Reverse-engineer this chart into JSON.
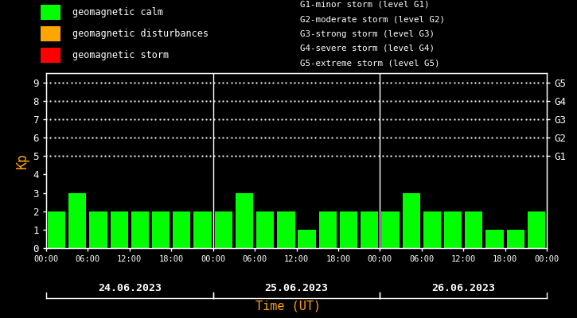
{
  "background_color": "#000000",
  "bar_color_calm": "#00FF00",
  "bar_color_disturbance": "#FFA500",
  "bar_color_storm": "#FF0000",
  "kp_values": [
    2,
    3,
    2,
    2,
    2,
    2,
    2,
    2,
    2,
    3,
    2,
    2,
    1,
    2,
    2,
    2,
    2,
    3,
    2,
    2,
    2,
    1,
    1,
    2
  ],
  "dates": [
    "24.06.2023",
    "25.06.2023",
    "26.06.2023"
  ],
  "ylabel": "Kp",
  "xlabel": "Time (UT)",
  "ylim": [
    0,
    9.5
  ],
  "yticks": [
    0,
    1,
    2,
    3,
    4,
    5,
    6,
    7,
    8,
    9
  ],
  "g_labels": [
    "G1",
    "G2",
    "G3",
    "G4",
    "G5"
  ],
  "g_levels": [
    5,
    6,
    7,
    8,
    9
  ],
  "legend_items": [
    {
      "color": "#00FF00",
      "label": "geomagnetic calm"
    },
    {
      "color": "#FFA500",
      "label": "geomagnetic disturbances"
    },
    {
      "color": "#FF0000",
      "label": "geomagnetic storm"
    }
  ],
  "right_labels": [
    "G1-minor storm (level G1)",
    "G2-moderate storm (level G2)",
    "G3-strong storm (level G3)",
    "G4-severe storm (level G4)",
    "G5-extreme storm (level G5)"
  ],
  "text_color": "#FFFFFF",
  "axis_color": "#FFFFFF",
  "ylabel_color": "#FFA500",
  "xlabel_color": "#FFA500",
  "dot_color": "#FFFFFF",
  "time_labels": [
    "00:00",
    "06:00",
    "12:00",
    "18:00",
    "00:00",
    "06:00",
    "12:00",
    "18:00",
    "00:00",
    "06:00",
    "12:00",
    "18:00",
    "00:00"
  ]
}
